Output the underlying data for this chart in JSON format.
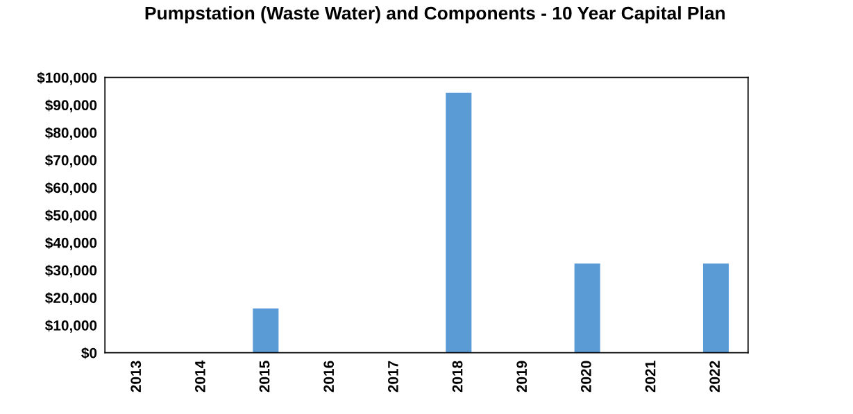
{
  "chart_data": {
    "type": "bar",
    "title": "Pumpstation (Waste Water) and Components - 10 Year Capital Plan",
    "categories": [
      "2013",
      "2014",
      "2015",
      "2016",
      "2017",
      "2018",
      "2019",
      "2020",
      "2021",
      "2022"
    ],
    "values": [
      0,
      0,
      16100,
      0,
      0,
      94400,
      0,
      32400,
      0,
      32400
    ],
    "color": "#5b9bd5",
    "ylim": [
      0,
      100000
    ],
    "yticks": [
      {
        "value": 0,
        "label": "$0"
      },
      {
        "value": 10000,
        "label": "$10,000"
      },
      {
        "value": 20000,
        "label": "$20,000"
      },
      {
        "value": 30000,
        "label": "$30,000"
      },
      {
        "value": 40000,
        "label": "$40,000"
      },
      {
        "value": 50000,
        "label": "$50,000"
      },
      {
        "value": 60000,
        "label": "$60,000"
      },
      {
        "value": 70000,
        "label": "$70,000"
      },
      {
        "value": 80000,
        "label": "$80,000"
      },
      {
        "value": 90000,
        "label": "$90,000"
      },
      {
        "value": 100000,
        "label": "$100,000"
      }
    ],
    "grid": false
  }
}
